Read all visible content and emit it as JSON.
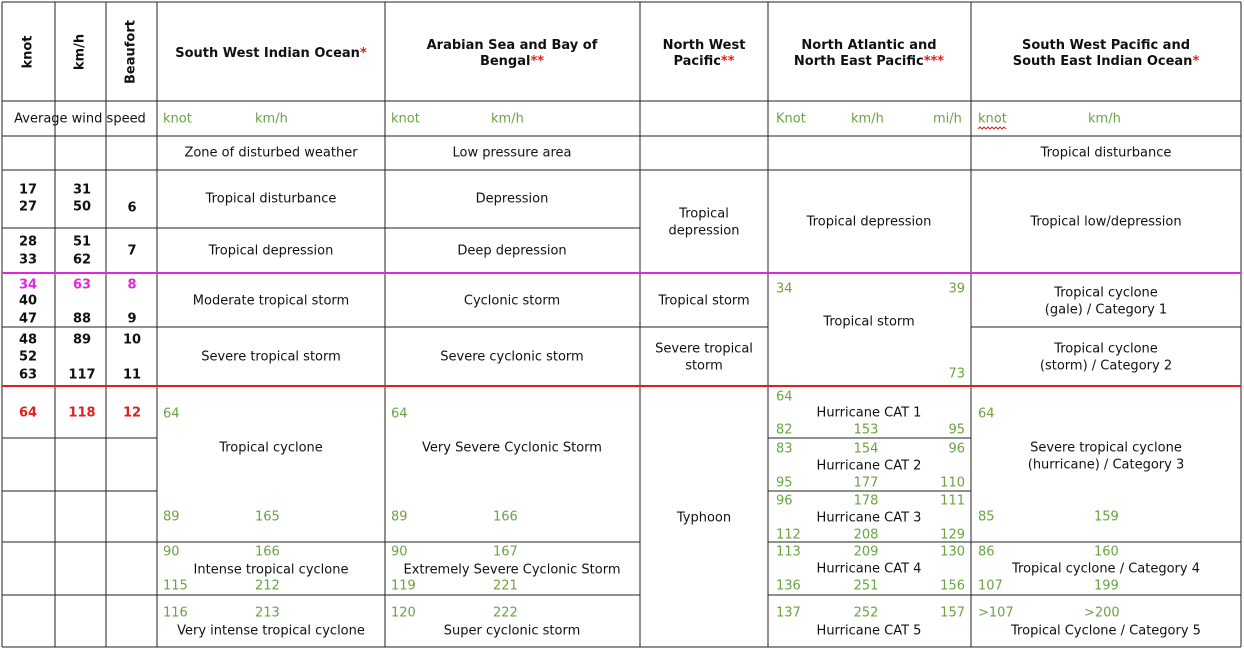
{
  "header": {
    "knot": "knot",
    "kmh": "km/h",
    "beaufort": "Beaufort",
    "basins": [
      {
        "lines": [
          "South West Indian Ocean"
        ],
        "mark": "*"
      },
      {
        "lines": [
          "Arabian Sea and Bay of",
          "Bengal"
        ],
        "mark": "**"
      },
      {
        "lines": [
          "North West",
          "Pacific"
        ],
        "mark": "**"
      },
      {
        "lines": [
          "North Atlantic and",
          "North East Pacific"
        ],
        "mark": "***"
      },
      {
        "lines": [
          "South West Pacific and",
          "South East Indian Ocean"
        ],
        "mark": "*"
      }
    ]
  },
  "units": {
    "label": "Average wind speed",
    "swio": [
      "knot",
      "km/h"
    ],
    "arabian": [
      "knot",
      "km/h"
    ],
    "natl": [
      "Knot",
      "km/h",
      "mi/h"
    ],
    "swp": [
      "knot",
      "km/h"
    ]
  },
  "scale": {
    "knot": [
      [
        "17",
        "27"
      ],
      [
        "28",
        "33"
      ],
      [
        "34",
        "40",
        "47"
      ],
      [
        "48",
        "52",
        "63"
      ],
      [
        "64"
      ]
    ],
    "kmh": [
      [
        "31",
        "50"
      ],
      [
        "51",
        "62"
      ],
      [
        "63",
        "88"
      ],
      [
        "89",
        "117"
      ],
      [
        "118"
      ]
    ],
    "beaufort": [
      [
        "6"
      ],
      [
        "7"
      ],
      [
        "8",
        "9"
      ],
      [
        "10",
        "11"
      ],
      [
        "12"
      ]
    ]
  },
  "swio": {
    "disturbed": "Zone of disturbed weather",
    "cells": [
      {
        "label": [
          "Tropical disturbance"
        ]
      },
      {
        "label": [
          "Tropical depression"
        ]
      },
      {
        "label": [
          "Moderate tropical storm"
        ]
      },
      {
        "label": [
          "Severe tropical storm"
        ]
      },
      {
        "label": [
          "Tropical cyclone"
        ],
        "from": [
          "64"
        ],
        "to": [
          "89",
          "165"
        ]
      },
      {
        "label": [
          "Intense tropical cyclone"
        ],
        "from": [
          "90",
          "166"
        ],
        "to": [
          "115",
          "212"
        ]
      },
      {
        "label": [
          "Very intense tropical cyclone"
        ],
        "from": [
          "116",
          "213"
        ]
      }
    ]
  },
  "arabian": {
    "disturbed": "Low pressure area",
    "cells": [
      {
        "label": [
          "Depression"
        ]
      },
      {
        "label": [
          "Deep depression"
        ]
      },
      {
        "label": [
          "Cyclonic storm"
        ]
      },
      {
        "label": [
          "Severe cyclonic storm"
        ]
      },
      {
        "label": [
          "Very Severe Cyclonic Storm"
        ],
        "from": [
          "64"
        ],
        "to": [
          "89",
          "166"
        ]
      },
      {
        "label": [
          "Extremely Severe Cyclonic Storm"
        ],
        "from": [
          "90",
          "167"
        ],
        "to": [
          "119",
          "221"
        ]
      },
      {
        "label": [
          "Super cyclonic storm"
        ],
        "from": [
          "120",
          "222"
        ]
      }
    ]
  },
  "nwp": {
    "cells": [
      {
        "label": [
          "Tropical",
          "depression"
        ]
      },
      {
        "label": [
          "Tropical storm"
        ]
      },
      {
        "label": [
          "Severe tropical",
          "storm"
        ]
      },
      {
        "label": [
          "Typhoon"
        ]
      }
    ]
  },
  "natl": {
    "cells": [
      {
        "label": [
          "Tropical depression"
        ]
      },
      {
        "label": [
          "Tropical storm"
        ],
        "from": [
          "34",
          "39"
        ],
        "to": [
          "73"
        ]
      },
      {
        "label": [
          "Hurricane CAT 1"
        ],
        "from": [
          "64"
        ],
        "to": [
          "82",
          "153",
          "95"
        ]
      },
      {
        "label": [
          "Hurricane CAT 2"
        ],
        "from": [
          "83",
          "154",
          "96"
        ],
        "to": [
          "95",
          "177",
          "110"
        ]
      },
      {
        "label": [
          "Hurricane CAT 3"
        ],
        "from": [
          "96",
          "178",
          "111"
        ],
        "to": [
          "112",
          "208",
          "129"
        ]
      },
      {
        "label": [
          "Hurricane CAT 4"
        ],
        "from": [
          "113",
          "209",
          "130"
        ],
        "to": [
          "136",
          "251",
          "156"
        ]
      },
      {
        "label": [
          "Hurricane CAT 5"
        ],
        "from": [
          "137",
          "252",
          "157"
        ]
      }
    ]
  },
  "swp": {
    "disturbed": "Tropical disturbance",
    "cells": [
      {
        "label": [
          "Tropical low/depression"
        ]
      },
      {
        "label": [
          "Tropical cyclone",
          "(gale) / Category 1"
        ]
      },
      {
        "label": [
          "Tropical cyclone",
          "(storm) / Category 2"
        ]
      },
      {
        "label": [
          "Severe tropical cyclone",
          "(hurricane) / Category 3"
        ],
        "from": [
          "64"
        ],
        "to": [
          "85",
          "159"
        ]
      },
      {
        "label": [
          "Tropical cyclone / Category 4"
        ],
        "from": [
          "86",
          "160"
        ],
        "to": [
          "107",
          "199"
        ]
      },
      {
        "label": [
          "Tropical Cyclone / Category 5"
        ],
        "from": [
          ">107",
          ">200"
        ]
      }
    ]
  }
}
